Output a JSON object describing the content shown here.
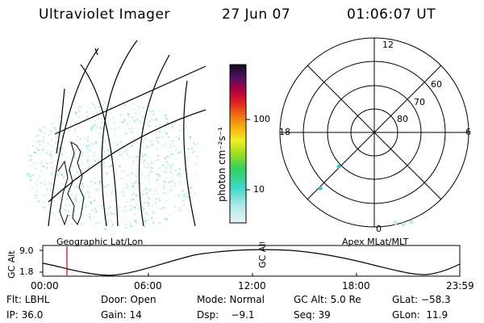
{
  "header": {
    "title": "Ultraviolet Imager",
    "date": "27 Jun 07",
    "time": "01:06:07 UT"
  },
  "colorbar": {
    "unit_label": "photon cm⁻²s⁻¹",
    "ticks": [
      "100",
      "10"
    ]
  },
  "panels": {
    "left_label": "Geographic Lat/Lon",
    "right_label": "Apex MLat/MLT"
  },
  "polar_plot": {
    "mlt_labels": {
      "top": "12",
      "left": "18",
      "right": "6",
      "bottom": "0"
    },
    "lat_labels": [
      "60",
      "70",
      "80"
    ]
  },
  "altitude_plot": {
    "ylabel": "GC Alt",
    "yticks": [
      "9.0",
      "1.8"
    ],
    "xticks": [
      "00:00",
      "06:00",
      "12:00",
      "18:00",
      "23:59"
    ],
    "marker_time": "01:06"
  },
  "footer": {
    "row1": [
      "Flt: LBHL",
      "Door: Open",
      "Mode: Normal",
      "GC Alt: 5.0 Re",
      "GLat: −58.3"
    ],
    "row2": [
      "IP: 36.0",
      "Gain: 14",
      "Dsp:    −9.1",
      "Seq: 39",
      "GLon:  11.9"
    ]
  },
  "colors": {
    "background": "#ffffff",
    "foreground": "#000000",
    "marker": "#cc0000",
    "emission": "#9fe3e3"
  }
}
